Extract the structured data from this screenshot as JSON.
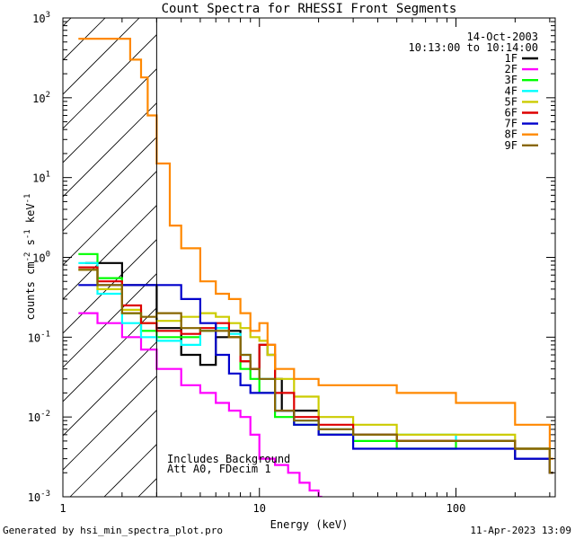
{
  "chart_data": {
    "type": "line",
    "title": "Count Spectra for RHESSI Front Segments",
    "xlabel": "Energy (keV)",
    "ylabel_main": "counts cm",
    "ylabel_exp1": "-2",
    "ylabel_mid": " s",
    "ylabel_exp2": "-1",
    "ylabel_end": " keV",
    "ylabel_exp3": "-1",
    "x_scale": "log",
    "y_scale": "log",
    "xlim": [
      1,
      320
    ],
    "ylim": [
      0.001,
      1000
    ],
    "x_ticks": [
      {
        "value": 1,
        "label": "1"
      },
      {
        "value": 10,
        "label": "10"
      },
      {
        "value": 100,
        "label": "100"
      }
    ],
    "y_ticks": [
      {
        "value": 0.001,
        "base": "10",
        "exp": "-3"
      },
      {
        "value": 0.01,
        "base": "10",
        "exp": "-2"
      },
      {
        "value": 0.1,
        "base": "10",
        "exp": "-1"
      },
      {
        "value": 1,
        "base": "10",
        "exp": "0"
      },
      {
        "value": 10,
        "base": "10",
        "exp": "1"
      },
      {
        "value": 100,
        "base": "10",
        "exp": "2"
      },
      {
        "value": 1000,
        "base": "10",
        "exp": "3"
      }
    ],
    "shaded_region_upper_keV": 3,
    "date": "14-Oct-2003",
    "time_range": "10:13:00 to 10:14:00",
    "annotation_line1": "Includes Background",
    "annotation_line2": "Att A0, FDecim 1",
    "footer_left": "Generated by hsi_min_spectra_plot.pro",
    "footer_right": "11-Apr-2023 13:09",
    "series": [
      {
        "name": "1F",
        "color": "#000000",
        "x": [
          1.3,
          2,
          3,
          4,
          5,
          6,
          7,
          8,
          9,
          10,
          11,
          12,
          13,
          15,
          20,
          30,
          50,
          100,
          200,
          300
        ],
        "y": [
          0.85,
          0.45,
          0.13,
          0.06,
          0.045,
          0.1,
          0.12,
          0.05,
          0.04,
          0.08,
          0.06,
          0.03,
          0.012,
          0.012,
          0.006,
          0.006,
          0.005,
          0.005,
          0.003,
          0.002
        ]
      },
      {
        "name": "2F",
        "color": "#ff00ff",
        "x": [
          1.2,
          1.5,
          2,
          2.5,
          3,
          4,
          5,
          6,
          7,
          8,
          9,
          10,
          12,
          14,
          16,
          18,
          20
        ],
        "y": [
          0.2,
          0.15,
          0.1,
          0.07,
          0.04,
          0.025,
          0.02,
          0.015,
          0.012,
          0.01,
          0.006,
          0.003,
          0.0025,
          0.002,
          0.0015,
          0.0012,
          0.001
        ]
      },
      {
        "name": "3F",
        "color": "#00ff00",
        "x": [
          1.2,
          1.5,
          2,
          2.5,
          3,
          4,
          5,
          6,
          7,
          8,
          9,
          10,
          12,
          15,
          20,
          30,
          50,
          100,
          200,
          300
        ],
        "y": [
          1.1,
          0.55,
          0.2,
          0.12,
          0.1,
          0.1,
          0.12,
          0.13,
          0.1,
          0.04,
          0.03,
          0.02,
          0.01,
          0.008,
          0.006,
          0.005,
          0.004,
          0.005,
          0.004,
          0.002
        ]
      },
      {
        "name": "4F",
        "color": "#00ffff",
        "x": [
          1.2,
          1.5,
          2,
          2.5,
          3,
          4,
          5,
          6,
          7,
          8,
          9,
          10,
          12,
          15,
          20,
          30,
          50,
          100,
          200,
          300
        ],
        "y": [
          0.85,
          0.35,
          0.15,
          0.1,
          0.09,
          0.08,
          0.12,
          0.13,
          0.11,
          0.06,
          0.04,
          0.03,
          0.012,
          0.009,
          0.007,
          0.006,
          0.006,
          0.005,
          0.004,
          0.002
        ]
      },
      {
        "name": "5F",
        "color": "#cccc00",
        "x": [
          1.2,
          1.5,
          2,
          2.5,
          3,
          4,
          5,
          6,
          7,
          8,
          9,
          10,
          11,
          12,
          15,
          20,
          30,
          50,
          100,
          200,
          300
        ],
        "y": [
          0.7,
          0.4,
          0.22,
          0.15,
          0.16,
          0.18,
          0.2,
          0.18,
          0.15,
          0.13,
          0.1,
          0.09,
          0.06,
          0.03,
          0.018,
          0.01,
          0.008,
          0.006,
          0.006,
          0.004,
          0.002
        ]
      },
      {
        "name": "6F",
        "color": "#dd0000",
        "x": [
          1.2,
          1.5,
          2,
          2.5,
          3,
          4,
          5,
          6,
          7,
          8,
          9,
          10,
          12,
          15,
          20,
          30,
          50,
          100,
          200,
          300
        ],
        "y": [
          0.75,
          0.5,
          0.25,
          0.15,
          0.12,
          0.11,
          0.13,
          0.15,
          0.1,
          0.05,
          0.04,
          0.08,
          0.02,
          0.01,
          0.008,
          0.006,
          0.005,
          0.005,
          0.004,
          0.002
        ]
      },
      {
        "name": "7F",
        "color": "#0000cc",
        "x": [
          1.2,
          1.5,
          2,
          2.5,
          3,
          4,
          5,
          6,
          7,
          8,
          9,
          10,
          12,
          15,
          20,
          30,
          50,
          100,
          200,
          300
        ],
        "y": [
          0.45,
          0.45,
          0.45,
          0.45,
          0.45,
          0.3,
          0.15,
          0.06,
          0.035,
          0.025,
          0.02,
          0.02,
          0.012,
          0.008,
          0.006,
          0.004,
          0.004,
          0.004,
          0.003,
          0.002
        ]
      },
      {
        "name": "8F",
        "color": "#ff8800",
        "x": [
          1.2,
          1.5,
          2,
          2.2,
          2.5,
          2.7,
          3,
          3.5,
          4,
          5,
          6,
          7,
          8,
          9,
          10,
          11,
          12,
          15,
          20,
          30,
          50,
          100,
          200,
          300
        ],
        "y": [
          550,
          550,
          550,
          300,
          180,
          60,
          15,
          2.5,
          1.3,
          0.5,
          0.35,
          0.3,
          0.2,
          0.12,
          0.15,
          0.08,
          0.04,
          0.03,
          0.025,
          0.025,
          0.02,
          0.015,
          0.008,
          0.003
        ]
      },
      {
        "name": "9F",
        "color": "#886600",
        "x": [
          1.2,
          1.5,
          2,
          2.5,
          3,
          4,
          5,
          6,
          7,
          8,
          9,
          10,
          12,
          15,
          20,
          30,
          50,
          100,
          200,
          300
        ],
        "y": [
          0.7,
          0.45,
          0.2,
          0.18,
          0.2,
          0.13,
          0.12,
          0.12,
          0.1,
          0.06,
          0.04,
          0.03,
          0.012,
          0.009,
          0.007,
          0.006,
          0.005,
          0.005,
          0.004,
          0.002
        ]
      }
    ]
  }
}
